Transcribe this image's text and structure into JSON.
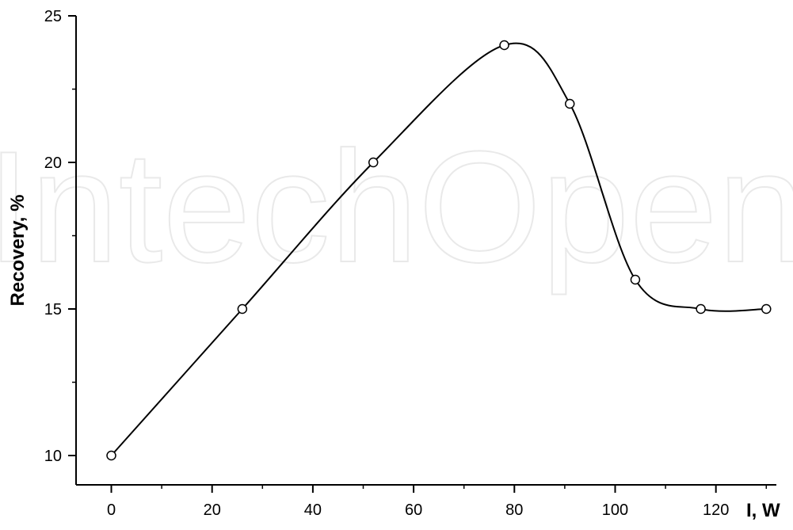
{
  "watermark": "IntechOpen",
  "chart_data": {
    "type": "line",
    "title": "",
    "xlabel": "I, W",
    "ylabel": "Recovery, %",
    "x": [
      0,
      26,
      52,
      78,
      91,
      104,
      117,
      130
    ],
    "series": [
      {
        "values": [
          10,
          15,
          20,
          24,
          22,
          16,
          15,
          15
        ]
      }
    ],
    "xlim": [
      -7,
      132
    ],
    "ylim": [
      9,
      25
    ],
    "xticks": [
      0,
      20,
      40,
      60,
      80,
      100,
      120
    ],
    "xtick_labels": [
      "0",
      "20",
      "40",
      "60",
      "80",
      "100",
      "120"
    ],
    "yticks": [
      10,
      15,
      20,
      25
    ],
    "ytick_labels": [
      "10",
      "15",
      "20",
      "25"
    ],
    "x_minor_ticks": [
      10,
      30,
      50,
      70,
      90,
      110,
      130
    ],
    "y_minor_ticks": [
      12.5,
      17.5,
      22.5
    ],
    "grid": false,
    "legend": "none",
    "line_style": "smooth spline with open circle markers",
    "colors": {
      "line": "#000000",
      "marker_fill": "#ffffff",
      "watermark": "#e9e9e9"
    }
  }
}
